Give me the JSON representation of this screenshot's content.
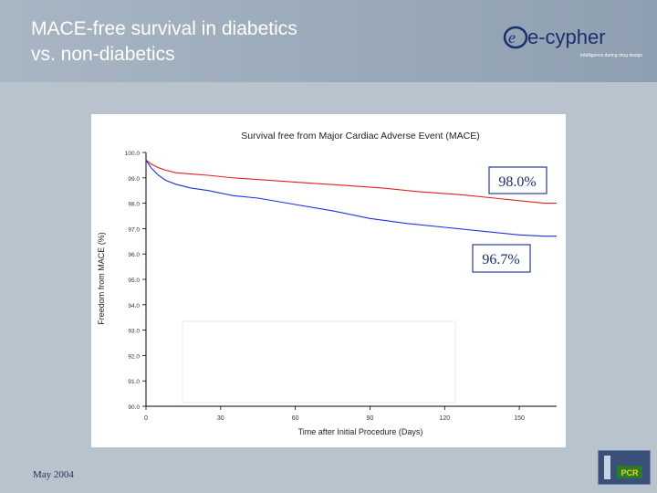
{
  "slide": {
    "title_line1": "MACE-free survival in diabetics",
    "title_line2": "vs. non-diabetics",
    "footer_date": "May 2004"
  },
  "logo": {
    "brand": "e-cypher",
    "tagline": "Intelligence during drug design",
    "badge": "PCR"
  },
  "chart_data": {
    "type": "line",
    "title": "Survival free from Major Cardiac Adverse Event (MACE)",
    "xlabel": "Time after Initial Procedure (Days)",
    "ylabel": "Freedom from MACE (%)",
    "xlim": [
      0,
      165
    ],
    "ylim": [
      90.0,
      100.0
    ],
    "xticks": [
      0,
      30,
      60,
      90,
      120,
      150
    ],
    "yticks": [
      90.0,
      91.0,
      92.0,
      93.0,
      94.0,
      95.0,
      96.0,
      97.0,
      98.0,
      99.0,
      100.0
    ],
    "ytick_labels": [
      "90.0",
      "91.0",
      "92.0",
      "93.0",
      "94.0",
      "95.0",
      "96.0",
      "97.0",
      "98.0",
      "99.0",
      "100.0"
    ],
    "series": [
      {
        "name": "non-diabetics",
        "color": "#e02020",
        "x": [
          0,
          2,
          5,
          8,
          12,
          18,
          25,
          35,
          50,
          65,
          80,
          95,
          110,
          125,
          140,
          150,
          160,
          165
        ],
        "y": [
          99.7,
          99.55,
          99.4,
          99.3,
          99.2,
          99.15,
          99.1,
          99.0,
          98.9,
          98.8,
          98.7,
          98.6,
          98.45,
          98.35,
          98.2,
          98.1,
          98.0,
          98.0
        ]
      },
      {
        "name": "diabetics",
        "color": "#2030e0",
        "x": [
          0,
          2,
          5,
          8,
          12,
          18,
          25,
          35,
          45,
          60,
          75,
          90,
          105,
          120,
          135,
          150,
          160,
          165
        ],
        "y": [
          99.7,
          99.4,
          99.1,
          98.9,
          98.75,
          98.6,
          98.5,
          98.3,
          98.2,
          97.95,
          97.7,
          97.4,
          97.2,
          97.05,
          96.9,
          96.75,
          96.7,
          96.7
        ]
      }
    ],
    "annotations": [
      "98.0%",
      "96.7%"
    ]
  }
}
